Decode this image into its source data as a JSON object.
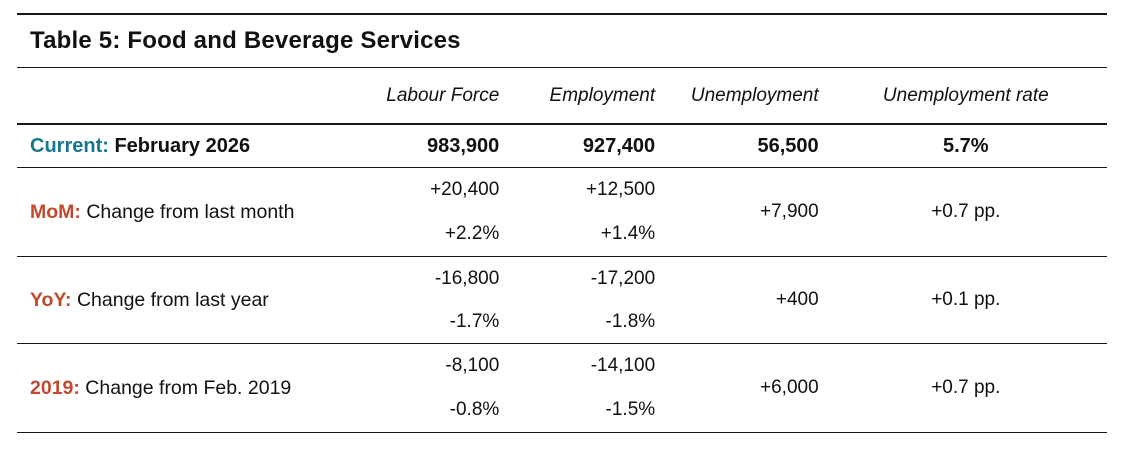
{
  "title": "Table 5: Food and Beverage Services",
  "columns": {
    "labour_force": "Labour Force",
    "employment": "Employment",
    "unemployment": "Unemployment",
    "unemployment_rate": "Unemployment rate"
  },
  "rows": [
    {
      "key": "current",
      "prefix": "Current:",
      "label": "February 2026",
      "labour_force": {
        "abs": "983,900"
      },
      "employment": {
        "abs": "927,400"
      },
      "unemployment": "56,500",
      "unemployment_rate": "5.7%"
    },
    {
      "key": "mom",
      "prefix": "MoM:",
      "label": "Change from last month",
      "labour_force": {
        "abs": "+20,400",
        "pct": "+2.2%"
      },
      "employment": {
        "abs": "+12,500",
        "pct": "+1.4%"
      },
      "unemployment": "+7,900",
      "unemployment_rate": "+0.7 pp."
    },
    {
      "key": "yoy",
      "prefix": "YoY:",
      "label": "Change from last year",
      "labour_force": {
        "abs": "-16,800",
        "pct": "-1.7%"
      },
      "employment": {
        "abs": "-17,200",
        "pct": "-1.8%"
      },
      "unemployment": "+400",
      "unemployment_rate": "+0.1 pp."
    },
    {
      "key": "y2019",
      "prefix": "2019:",
      "label": "Change from Feb. 2019",
      "labour_force": {
        "abs": "-8,100",
        "pct": "-0.8%"
      },
      "employment": {
        "abs": "-14,100",
        "pct": "-1.5%"
      },
      "unemployment": "+6,000",
      "unemployment_rate": "+0.7 pp."
    }
  ],
  "colors": {
    "accent_teal": "#16798b",
    "accent_red": "#c14a2e",
    "text": "#111111",
    "line": "#161616"
  }
}
